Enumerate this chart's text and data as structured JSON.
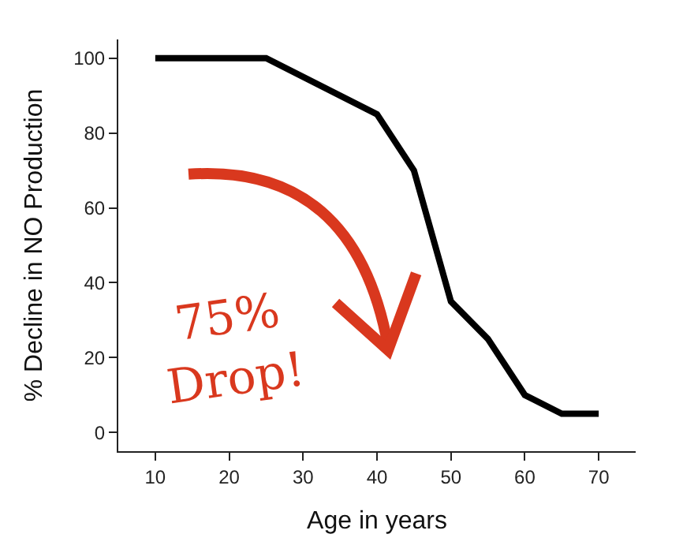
{
  "chart_data": {
    "type": "line",
    "xlabel": "Age in years",
    "ylabel": "% Decline in NO Production",
    "x": [
      10,
      25,
      40,
      45,
      50,
      55,
      60,
      65,
      70
    ],
    "series": [
      {
        "color": "#000000",
        "values": [
          100,
          100,
          85,
          70,
          35,
          25,
          10,
          5,
          5
        ]
      }
    ],
    "xlim": [
      5,
      75
    ],
    "xticks": [
      10,
      20,
      30,
      40,
      50,
      60,
      70
    ],
    "ylim": [
      -5,
      105
    ],
    "yticks": [
      0,
      20,
      40,
      60,
      80,
      100
    ],
    "marker": "none",
    "line_style": "solid",
    "annotations": [
      "75% Drop!"
    ]
  }
}
